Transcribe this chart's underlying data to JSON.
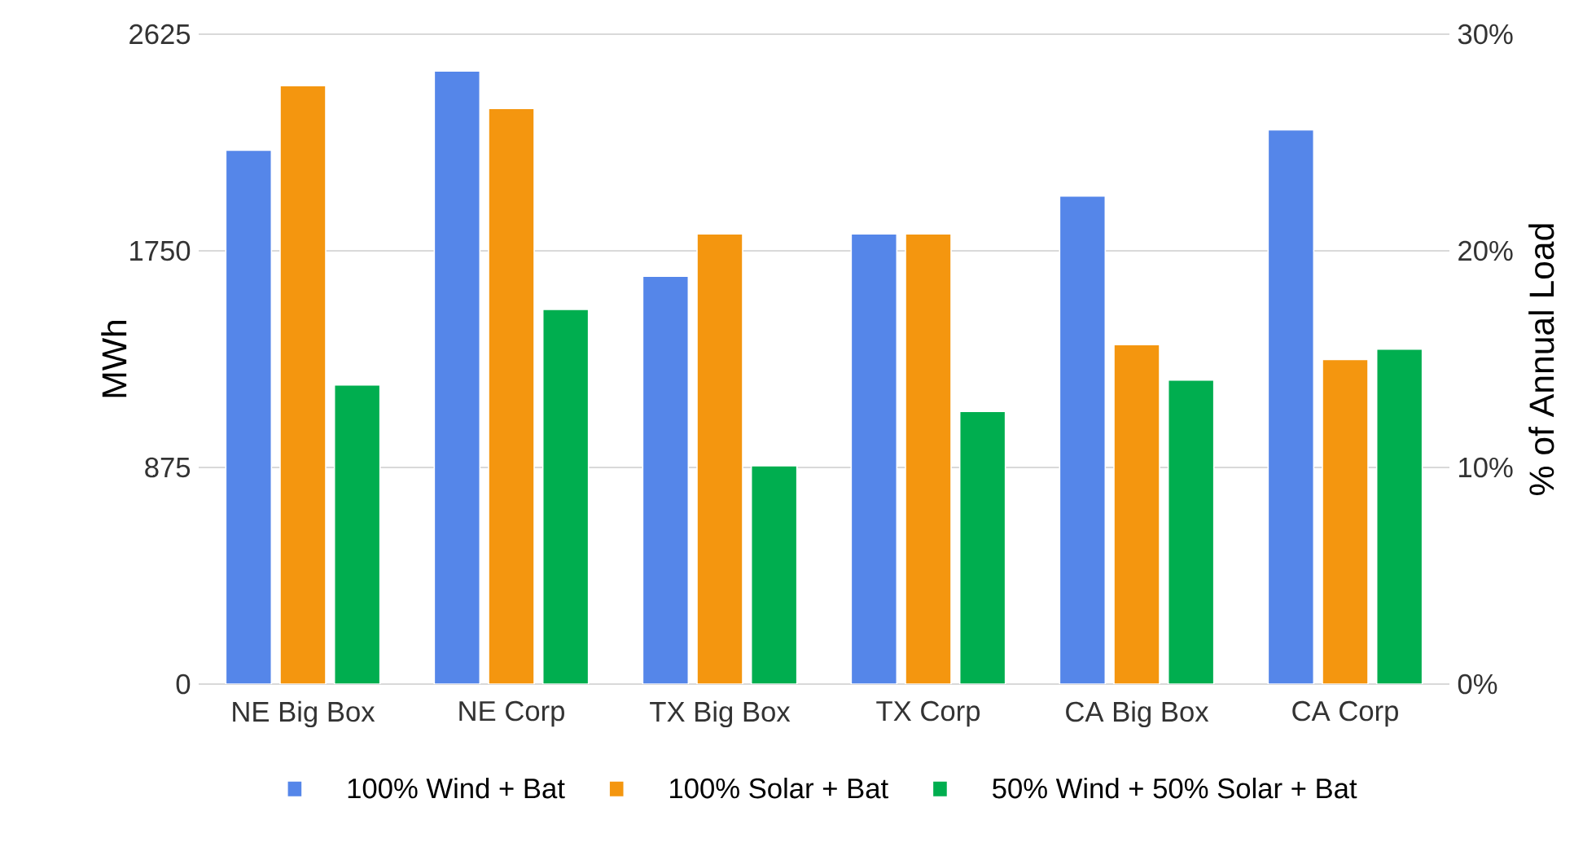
{
  "chart_data": {
    "type": "bar",
    "ylabel": "MWh",
    "y2label": "% of Annual Load",
    "categories": [
      "NE Big Box",
      "NE Corp",
      "TX Big Box",
      "TX Corp",
      "CA Big Box",
      "CA Corp"
    ],
    "series": [
      {
        "name": "100% Wind + Bat",
        "color": "#5586e9",
        "values": [
          2156,
          2476,
          1647,
          1818,
          1971,
          2239
        ]
      },
      {
        "name": "100% Solar + Bat",
        "color": "#f4960f",
        "values": [
          2417,
          2325,
          1818,
          1818,
          1371,
          1311
        ]
      },
      {
        "name": "50% Wind + 50% Solar + Bat",
        "color": "#00ae4f",
        "values": [
          1208,
          1513,
          882,
          1101,
          1228,
          1353
        ]
      }
    ],
    "ylim": [
      0,
      2625
    ],
    "yticks": [
      0,
      875,
      1750,
      2625
    ],
    "y2lim": [
      0,
      30
    ],
    "y2ticks": [
      {
        "value": 0,
        "label": "0%"
      },
      {
        "value": 10,
        "label": "10%"
      },
      {
        "value": 20,
        "label": "20%"
      },
      {
        "value": 30,
        "label": "30%"
      }
    ],
    "grid": "y",
    "legend": "bottom"
  }
}
